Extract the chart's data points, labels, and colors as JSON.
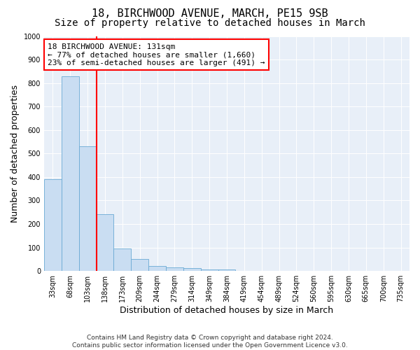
{
  "title": "18, BIRCHWOOD AVENUE, MARCH, PE15 9SB",
  "subtitle": "Size of property relative to detached houses in March",
  "xlabel": "Distribution of detached houses by size in March",
  "ylabel": "Number of detached properties",
  "bin_labels": [
    "33sqm",
    "68sqm",
    "103sqm",
    "138sqm",
    "173sqm",
    "209sqm",
    "244sqm",
    "279sqm",
    "314sqm",
    "349sqm",
    "384sqm",
    "419sqm",
    "454sqm",
    "489sqm",
    "524sqm",
    "560sqm",
    "595sqm",
    "630sqm",
    "665sqm",
    "700sqm",
    "735sqm"
  ],
  "bar_values": [
    390,
    828,
    532,
    243,
    96,
    52,
    22,
    17,
    12,
    8,
    8,
    0,
    0,
    0,
    0,
    0,
    0,
    0,
    0,
    0,
    0
  ],
  "bar_color": "#c9ddf2",
  "bar_edgecolor": "#6aaad4",
  "vline_color": "red",
  "vline_x_bin": 2.8,
  "ylim": [
    0,
    1000
  ],
  "yticks": [
    0,
    100,
    200,
    300,
    400,
    500,
    600,
    700,
    800,
    900,
    1000
  ],
  "bg_color": "#e8eff8",
  "annotation_text": "18 BIRCHWOOD AVENUE: 131sqm\n← 77% of detached houses are smaller (1,660)\n23% of semi-detached houses are larger (491) →",
  "annotation_box_color": "white",
  "annotation_box_edgecolor": "red",
  "footer_text": "Contains HM Land Registry data © Crown copyright and database right 2024.\nContains public sector information licensed under the Open Government Licence v3.0.",
  "title_fontsize": 11,
  "subtitle_fontsize": 10,
  "xlabel_fontsize": 9,
  "ylabel_fontsize": 9,
  "tick_fontsize": 7,
  "annotation_fontsize": 8,
  "footer_fontsize": 6.5
}
